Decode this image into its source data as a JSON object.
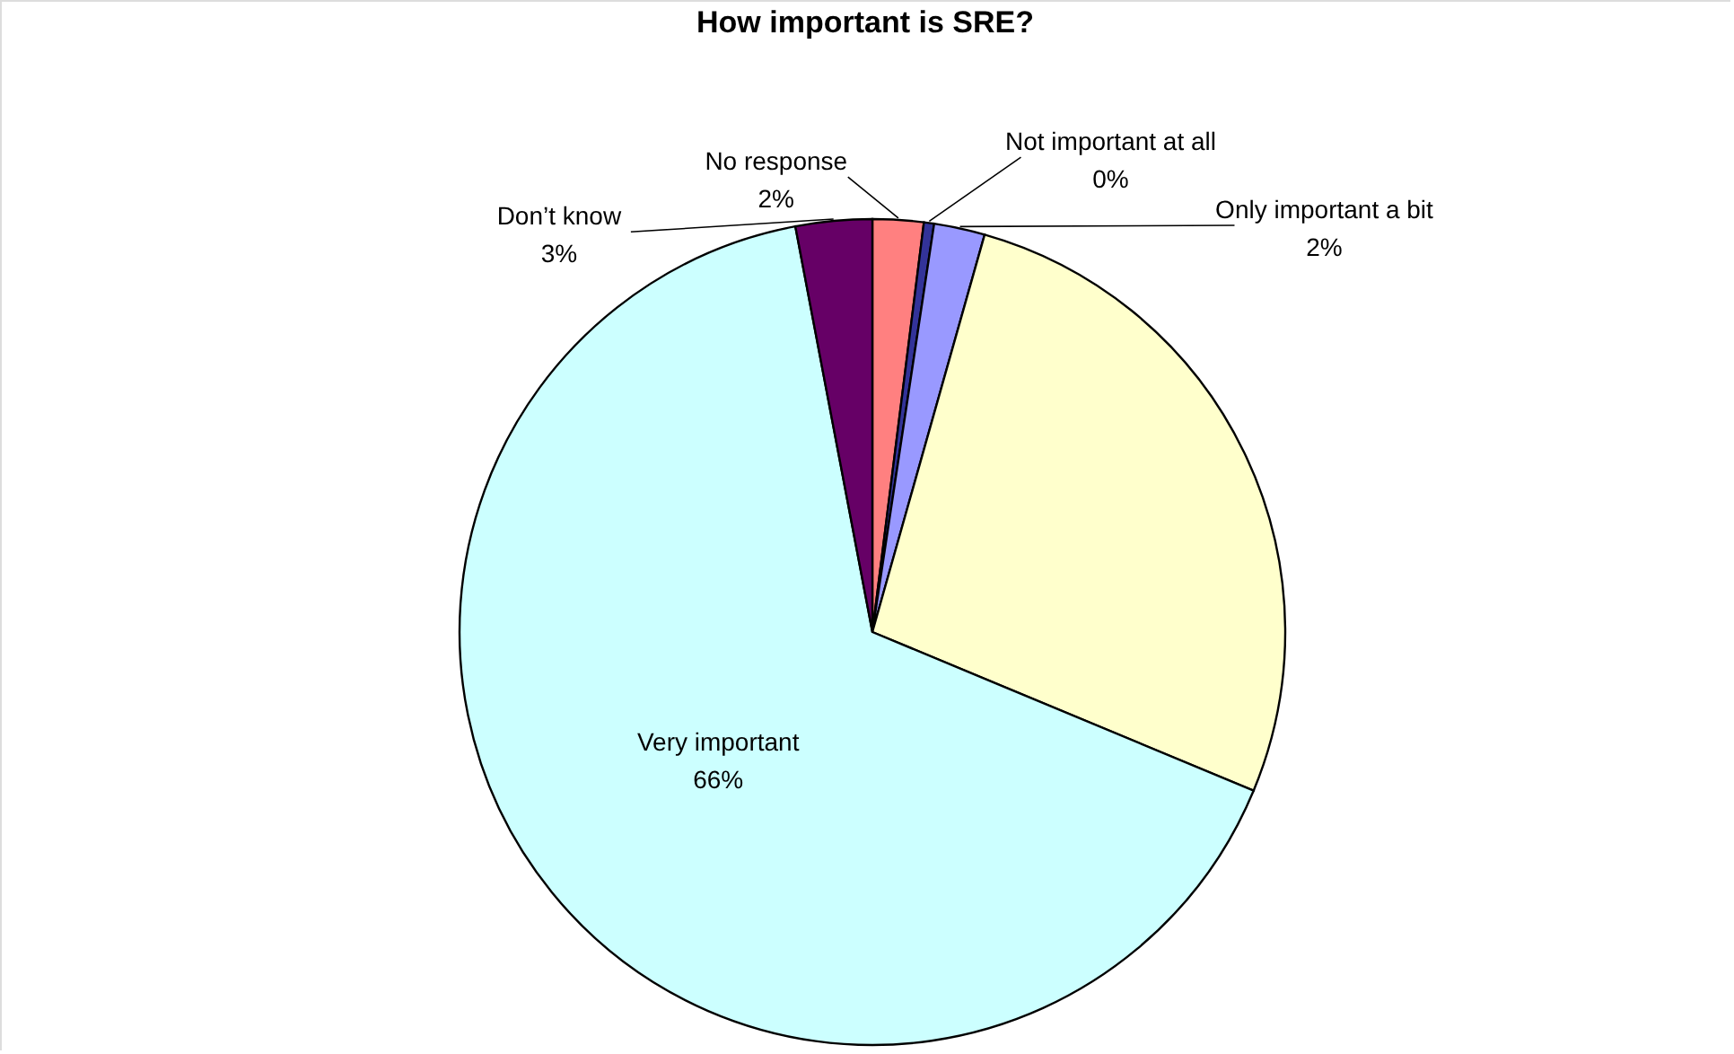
{
  "chart_data": {
    "type": "pie",
    "title": "How important is SRE?",
    "categories": [
      "No response",
      "Not important at all",
      "Only important a bit",
      null,
      "Very important",
      "Don’t know"
    ],
    "values": [
      2,
      0.4,
      2,
      27,
      66,
      3
    ],
    "value_labels": [
      "2%",
      "0%",
      "2%",
      null,
      "66%",
      "3%"
    ],
    "colors": [
      "#ff8080",
      "#333399",
      "#9999ff",
      "#ffffcc",
      "#ccffff",
      "#660066"
    ]
  }
}
